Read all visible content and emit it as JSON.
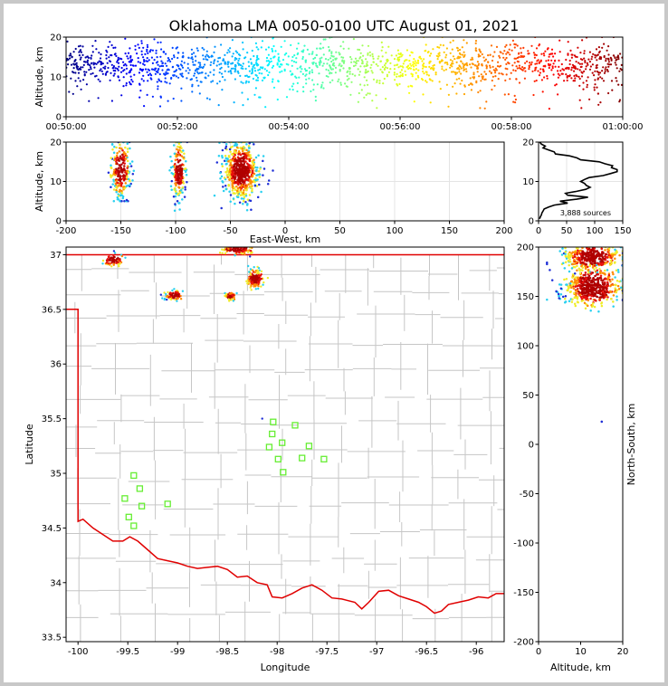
{
  "chart_data": [
    {
      "panel": "time-altitude",
      "type": "scatter",
      "title": "Oklahoma LMA 0050-0100 UTC August 01, 2021",
      "xlabel": "",
      "ylabel": "Altitude, km",
      "x_ticks": [
        "00:50:00",
        "00:52:00",
        "00:54:00",
        "00:56:00",
        "00:58:00",
        "01:00:00"
      ],
      "xlim_minutes": [
        0,
        10
      ],
      "ylim": [
        0,
        20
      ],
      "y_ticks": [
        0,
        10,
        20
      ],
      "colormap": "jet, colored by time",
      "altitude_band_km": [
        2,
        20
      ],
      "typical_altitude_km": 13
    },
    {
      "panel": "east-west-altitude",
      "type": "scatter",
      "xlabel": "East-West, km",
      "ylabel": "Altitude, km",
      "xlim": [
        -200,
        200
      ],
      "x_ticks": [
        -200,
        -150,
        -100,
        -50,
        0,
        50,
        100,
        150,
        200
      ],
      "ylim": [
        0,
        20
      ],
      "y_ticks": [
        0,
        10,
        20
      ],
      "clusters": [
        {
          "x_center": -150,
          "x_halfwidth": 10,
          "alt_range": [
            5,
            20
          ]
        },
        {
          "x_center": -97,
          "x_halfwidth": 7,
          "alt_range": [
            2,
            20
          ]
        },
        {
          "x_center": -40,
          "x_halfwidth": 18,
          "alt_range": [
            2,
            20
          ]
        }
      ]
    },
    {
      "panel": "altitude-histogram",
      "type": "line",
      "xlim": [
        0,
        150
      ],
      "x_ticks": [
        0,
        50,
        100,
        150
      ],
      "ylim": [
        0,
        20
      ],
      "y_ticks": [
        0,
        10,
        20
      ],
      "annotation": "3,888 sources",
      "profile": [
        [
          0.5,
          2
        ],
        [
          1,
          3
        ],
        [
          1.5,
          5
        ],
        [
          2,
          6
        ],
        [
          2.5,
          8
        ],
        [
          3,
          10
        ],
        [
          3.5,
          18
        ],
        [
          4,
          28
        ],
        [
          4.5,
          52
        ],
        [
          5,
          38
        ],
        [
          5.5,
          68
        ],
        [
          6,
          88
        ],
        [
          6.5,
          52
        ],
        [
          7,
          48
        ],
        [
          7.5,
          68
        ],
        [
          8,
          84
        ],
        [
          8.5,
          92
        ],
        [
          9,
          85
        ],
        [
          9.5,
          82
        ],
        [
          10,
          75
        ],
        [
          10.5,
          82
        ],
        [
          11,
          90
        ],
        [
          11.5,
          115
        ],
        [
          12,
          128
        ],
        [
          12.5,
          140
        ],
        [
          13,
          140
        ],
        [
          13.5,
          130
        ],
        [
          14,
          132
        ],
        [
          14.5,
          118
        ],
        [
          15,
          108
        ],
        [
          15.5,
          75
        ],
        [
          16,
          68
        ],
        [
          16.5,
          55
        ],
        [
          17,
          30
        ],
        [
          17.5,
          28
        ],
        [
          18,
          18
        ],
        [
          18.5,
          8
        ],
        [
          19,
          12
        ],
        [
          19.5,
          5
        ],
        [
          20,
          2
        ]
      ]
    },
    {
      "panel": "plan-view",
      "type": "scatter",
      "xlabel": "Longitude",
      "ylabel": "Latitude",
      "xlim": [
        -100.12,
        -95.72
      ],
      "x_ticks": [
        -100.0,
        -99.5,
        -99.0,
        -98.5,
        -98.0,
        -97.5,
        -97.0,
        -96.5,
        -96.0
      ],
      "ylim": [
        33.46,
        37.07
      ],
      "y_ticks": [
        33.5,
        34.0,
        34.5,
        35.0,
        35.5,
        36.0,
        36.5,
        37.0
      ],
      "stations": [
        [
          -98.04,
          35.47
        ],
        [
          -97.82,
          35.44
        ],
        [
          -98.05,
          35.36
        ],
        [
          -97.95,
          35.28
        ],
        [
          -98.08,
          35.24
        ],
        [
          -97.68,
          35.25
        ],
        [
          -97.99,
          35.13
        ],
        [
          -97.75,
          35.14
        ],
        [
          -97.53,
          35.13
        ],
        [
          -97.94,
          35.01
        ],
        [
          -99.44,
          34.98
        ],
        [
          -99.38,
          34.86
        ],
        [
          -99.53,
          34.77
        ],
        [
          -99.36,
          34.7
        ],
        [
          -99.1,
          34.72
        ],
        [
          -99.49,
          34.6
        ],
        [
          -99.44,
          34.52
        ]
      ],
      "source_clusters": [
        {
          "lon": -99.65,
          "lat": 36.95,
          "spread": [
            0.1,
            0.05
          ]
        },
        {
          "lon": -99.03,
          "lat": 36.63,
          "spread": [
            0.08,
            0.04
          ]
        },
        {
          "lon": -98.47,
          "lat": 36.62,
          "spread": [
            0.05,
            0.03
          ]
        },
        {
          "lon": -98.22,
          "lat": 36.78,
          "spread": [
            0.08,
            0.07
          ]
        },
        {
          "lon": -98.4,
          "lat": 37.05,
          "spread": [
            0.15,
            0.04
          ]
        }
      ],
      "isolated_source": [
        -98.15,
        35.5
      ]
    },
    {
      "panel": "altitude-north-south",
      "type": "scatter",
      "xlabel": "Altitude, km",
      "ylabel": "North-South, km",
      "xlim": [
        0,
        20
      ],
      "x_ticks": [
        0,
        10,
        20
      ],
      "ylim": [
        -200,
        200
      ],
      "y_ticks": [
        -200,
        -150,
        -100,
        -50,
        0,
        50,
        100,
        150,
        200
      ],
      "clusters": [
        {
          "y_center": 160,
          "y_halfwidth": 18
        },
        {
          "y_center": 190,
          "y_halfwidth": 12
        }
      ],
      "isolated_source": [
        15,
        23
      ]
    }
  ]
}
